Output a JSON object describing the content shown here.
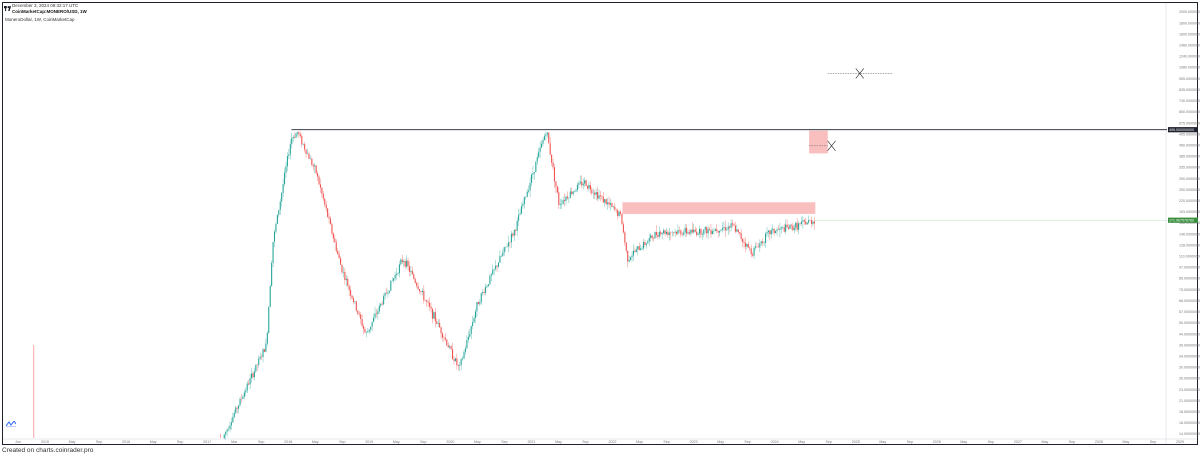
{
  "header": {
    "date_line": "December 3, 2024 09:32:17 UTC",
    "source_line": "CoinMarketCap:MONERO/USD, 1W"
  },
  "symbol_line": "MoneroDollar, 1W, CoinMarketCap",
  "footer": {
    "text": "Created on charts.coinrader.pro"
  },
  "colors": {
    "up": "#26a69a",
    "down": "#ef5350",
    "zone": "#f8b4b4",
    "resistance": "#1e222d",
    "last_tag": "#388e3c"
  },
  "icons": {
    "top_logo": "tradingview-logo-icon",
    "bottom_logo": "tradingview-logo-icon"
  },
  "chart_data": {
    "type": "candlestick",
    "scale": "log",
    "series": [
      {
        "name": "MoneroDollar"
      }
    ],
    "y_axis_labels": [
      "2000.000000000",
      "1800.000000000",
      "1600.000000000",
      "1460.000000000",
      "1240.000000000",
      "1080.000000000",
      "955.000000000",
      "835.000000000",
      "740.000000000",
      "650.000000000",
      "575.000000000",
      "495.000000000",
      "450.000000000",
      "385.000000000",
      "335.000000000",
      "290.000000000",
      "250.000000000",
      "220.000000000",
      "193.000000000",
      "168.000000000",
      "146.000000000",
      "128.000000000",
      "110.000000000",
      "97.000000000",
      "85.000000000",
      "75.000000000",
      "66.000000000",
      "57.000000000",
      "50.000000000",
      "44.000000000",
      "39.000000000",
      "34.000000000",
      "30.000000000",
      "26.000000000",
      "23.000000000",
      "21.000000000",
      "18.500000000",
      "16.000000000",
      "14.000000000"
    ],
    "y_range": [
      13.5,
      2100
    ],
    "x_axis_labels": [
      "Jun",
      "2015",
      "May",
      "Sep",
      "2016",
      "May",
      "Sep",
      "2017",
      "Mar",
      "Sep",
      "2018",
      "May",
      "Sep",
      "2019",
      "May",
      "Sep",
      "2020",
      "May",
      "Sep",
      "2021",
      "May",
      "Sep",
      "2022",
      "May",
      "Sep",
      "2023",
      "May",
      "Sep",
      "2024",
      "May",
      "Sep",
      "2025",
      "May",
      "Sep",
      "2026",
      "May",
      "Sep",
      "2027",
      "May",
      "Sep",
      "2028",
      "May",
      "Sep",
      "2029"
    ],
    "resistance_level": {
      "price": 495.0,
      "label": "495.000000000"
    },
    "last_price": {
      "price": 171.9,
      "label": "171.967576760"
    },
    "zones": [
      {
        "from_date": "2022-05",
        "to_date": "2024-12",
        "price_low": 185,
        "price_high": 212
      },
      {
        "from_date": "2024-11",
        "to_date": "2025-02",
        "price_low": 375,
        "price_high": 490
      }
    ],
    "targets": [
      {
        "date": "2025-01",
        "price": 410,
        "marker": "x"
      },
      {
        "date": "2025-02",
        "price": 955,
        "marker": "x"
      }
    ],
    "key_points": [
      {
        "date": "2014-06",
        "price": 13.5
      },
      {
        "date": "2017-01",
        "price": 13.5
      },
      {
        "date": "2017-08",
        "price": 40
      },
      {
        "date": "2017-09",
        "price": 130
      },
      {
        "date": "2017-12",
        "price": 450
      },
      {
        "date": "2018-01",
        "price": 480
      },
      {
        "date": "2018-04",
        "price": 300
      },
      {
        "date": "2018-08",
        "price": 100
      },
      {
        "date": "2018-12",
        "price": 45
      },
      {
        "date": "2019-06",
        "price": 110
      },
      {
        "date": "2019-12",
        "price": 48
      },
      {
        "date": "2020-03",
        "price": 30
      },
      {
        "date": "2020-06",
        "price": 66
      },
      {
        "date": "2020-12",
        "price": 155
      },
      {
        "date": "2021-05",
        "price": 495
      },
      {
        "date": "2021-07",
        "price": 210
      },
      {
        "date": "2021-11",
        "price": 270
      },
      {
        "date": "2022-05",
        "price": 180
      },
      {
        "date": "2022-06",
        "price": 110
      },
      {
        "date": "2022-11",
        "price": 150
      },
      {
        "date": "2023-05",
        "price": 150
      },
      {
        "date": "2023-11",
        "price": 160
      },
      {
        "date": "2024-02",
        "price": 118
      },
      {
        "date": "2024-05",
        "price": 150
      },
      {
        "date": "2024-09",
        "price": 160
      },
      {
        "date": "2024-12",
        "price": 172
      }
    ]
  }
}
